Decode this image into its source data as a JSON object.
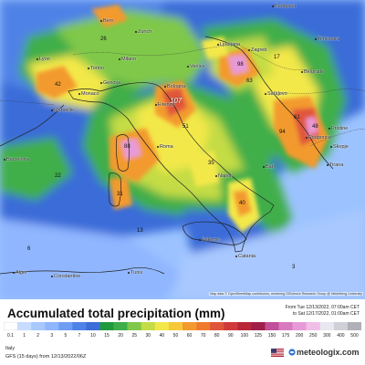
{
  "map": {
    "region_name": "Italy",
    "colors": {
      "sea_high": "#3b6cd8",
      "sea_low": "#9cc3ff",
      "land_low": "#b8e0ff",
      "green": "#3fae4a",
      "yellow": "#f3e84a",
      "orange": "#f39a2e",
      "red": "#e0563a",
      "pink": "#e89ad8",
      "white": "#e8e8f0"
    },
    "cities": [
      {
        "name": "Budapest"
      },
      {
        "name": "Bern"
      },
      {
        "name": "Zurich"
      },
      {
        "name": "Ljubljana"
      },
      {
        "name": "Zagreb"
      },
      {
        "name": "Timisoara"
      },
      {
        "name": "Lyon"
      },
      {
        "name": "Milano"
      },
      {
        "name": "Torino"
      },
      {
        "name": "Venice"
      },
      {
        "name": "Belgrade"
      },
      {
        "name": "Genova"
      },
      {
        "name": "Monaco"
      },
      {
        "name": "Bologna"
      },
      {
        "name": "Sarajevo"
      },
      {
        "name": "Marseille"
      },
      {
        "name": "Firenze"
      },
      {
        "name": "Podgorica"
      },
      {
        "name": "Pristine"
      },
      {
        "name": "Skopje"
      },
      {
        "name": "Roma"
      },
      {
        "name": "Tirana"
      },
      {
        "name": "Barcelona"
      },
      {
        "name": "Bari"
      },
      {
        "name": "Napoli"
      },
      {
        "name": "Palermo"
      },
      {
        "name": "Catania"
      },
      {
        "name": "Alger"
      },
      {
        "name": "Constantine"
      },
      {
        "name": "Tunis"
      }
    ],
    "values": [
      {
        "text": "107",
        "big": true
      },
      {
        "text": "98"
      },
      {
        "text": "42"
      },
      {
        "text": "48"
      },
      {
        "text": "88"
      },
      {
        "text": "61"
      },
      {
        "text": "26"
      },
      {
        "text": "35"
      },
      {
        "text": "13"
      },
      {
        "text": "94"
      },
      {
        "text": "40"
      },
      {
        "text": "6"
      },
      {
        "text": "22"
      },
      {
        "text": "51"
      },
      {
        "text": "63"
      },
      {
        "text": "31"
      },
      {
        "text": "17"
      },
      {
        "text": "3"
      }
    ],
    "attribution": "Map data © OpenStreetMap contributors, rendering GIScience Research Group @ Heidelberg University"
  },
  "legend": {
    "title": "Accumulated total precipitation (mm)",
    "period_from": "From Tue 12/13/2022, 07:00am CET",
    "period_to": "to Sat 12/17/2022, 01:00am CET",
    "scale": [
      {
        "label": "0.1",
        "color": "#ffffff"
      },
      {
        "label": "1",
        "color": "#c7dcff"
      },
      {
        "label": "2",
        "color": "#a8c8ff"
      },
      {
        "label": "3",
        "color": "#8fb6ff"
      },
      {
        "label": "5",
        "color": "#6f9df3"
      },
      {
        "label": "7",
        "color": "#4f82e6"
      },
      {
        "label": "10",
        "color": "#3b6cd8"
      },
      {
        "label": "15",
        "color": "#1f9a3d"
      },
      {
        "label": "20",
        "color": "#3fae4a"
      },
      {
        "label": "25",
        "color": "#7fc84a"
      },
      {
        "label": "30",
        "color": "#c4dc45"
      },
      {
        "label": "40",
        "color": "#f3e84a"
      },
      {
        "label": "50",
        "color": "#f7c83a"
      },
      {
        "label": "60",
        "color": "#f39a2e"
      },
      {
        "label": "70",
        "color": "#ee7a2c"
      },
      {
        "label": "80",
        "color": "#e0563a"
      },
      {
        "label": "90",
        "color": "#d03a3a"
      },
      {
        "label": "100",
        "color": "#b8283a"
      },
      {
        "label": "125",
        "color": "#a01f4a"
      },
      {
        "label": "150",
        "color": "#c24f9a"
      },
      {
        "label": "175",
        "color": "#d77ac0"
      },
      {
        "label": "200",
        "color": "#e89ad8"
      },
      {
        "label": "250",
        "color": "#f0bfe8"
      },
      {
        "label": "300",
        "color": "#e8e8f0"
      },
      {
        "label": "400",
        "color": "#d0d0d8"
      },
      {
        "label": "500",
        "color": "#b0b0b8"
      }
    ]
  },
  "footer": {
    "region": "Italy",
    "model": "GFS (15 days) from 12/13/2022/06Z",
    "brand": "meteologix.com"
  }
}
